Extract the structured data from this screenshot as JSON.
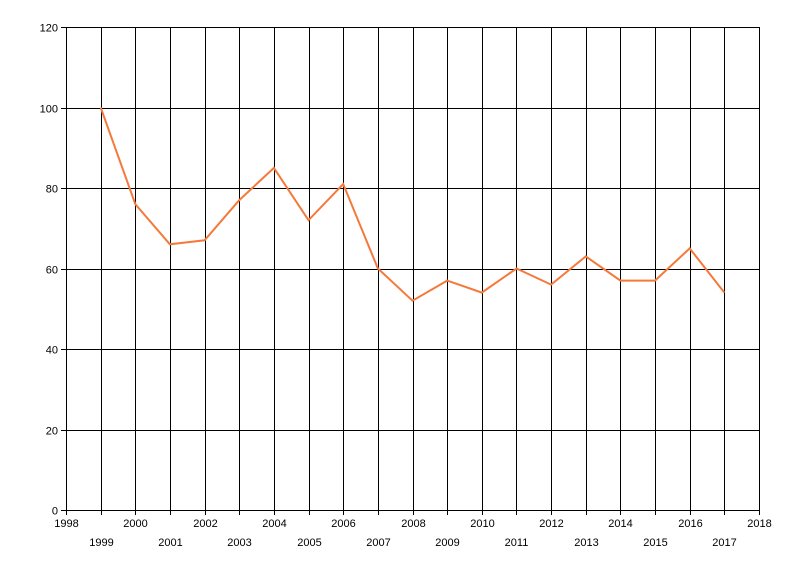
{
  "chart_data": {
    "type": "line",
    "x": [
      1999,
      2000,
      2001,
      2002,
      2003,
      2004,
      2005,
      2006,
      2007,
      2008,
      2009,
      2010,
      2011,
      2012,
      2013,
      2014,
      2015,
      2016,
      2017
    ],
    "series": [
      {
        "values": [
          100,
          76,
          66,
          67,
          77,
          85,
          72,
          81,
          60,
          52,
          57,
          54,
          60,
          56,
          63,
          57,
          57,
          65,
          54
        ],
        "color": "#f5793a"
      }
    ],
    "xlim": [
      1998,
      2018
    ],
    "ylim": [
      0,
      120
    ],
    "y_ticks": [
      "0",
      "20",
      "40",
      "60",
      "80",
      "100",
      "120"
    ],
    "x_ticks": [
      "1998",
      "1999",
      "2000",
      "2001",
      "2002",
      "2003",
      "2004",
      "2005",
      "2006",
      "2007",
      "2008",
      "2009",
      "2010",
      "2011",
      "2012",
      "2013",
      "2014",
      "2015",
      "2016",
      "2017",
      "2018"
    ],
    "grid": true,
    "title": "",
    "xlabel": "",
    "ylabel": ""
  }
}
